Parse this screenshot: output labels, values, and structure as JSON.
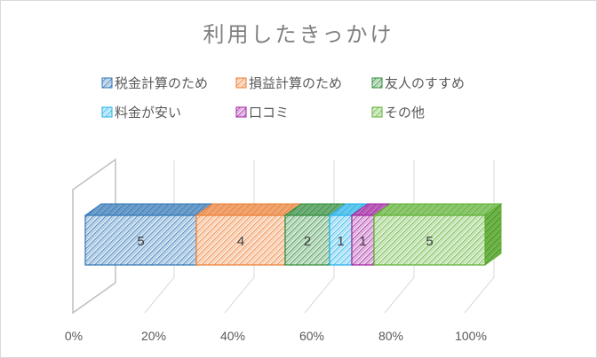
{
  "chart_data": {
    "type": "bar",
    "orientation": "horizontal",
    "stacking": "percent",
    "style": "3d",
    "title": "利用したきっかけ",
    "categories": [
      "利用したきっかけ"
    ],
    "series": [
      {
        "name": "税金計算のため",
        "values": [
          5
        ],
        "color": "#2e75b6"
      },
      {
        "name": "損益計算のため",
        "values": [
          4
        ],
        "color": "#ed7d31"
      },
      {
        "name": "友人のすすめ",
        "values": [
          2
        ],
        "color": "#2e8b3a"
      },
      {
        "name": "料金が安い",
        "values": [
          1
        ],
        "color": "#1fb0ea"
      },
      {
        "name": "口コミ",
        "values": [
          1
        ],
        "color": "#a020a0"
      },
      {
        "name": "その他",
        "values": [
          5
        ],
        "color": "#5bb12f"
      }
    ],
    "x_ticks": [
      "0%",
      "20%",
      "40%",
      "60%",
      "80%",
      "100%"
    ],
    "xlim": [
      0,
      100
    ],
    "grid": true,
    "legend_position": "top",
    "data_labels": true
  }
}
